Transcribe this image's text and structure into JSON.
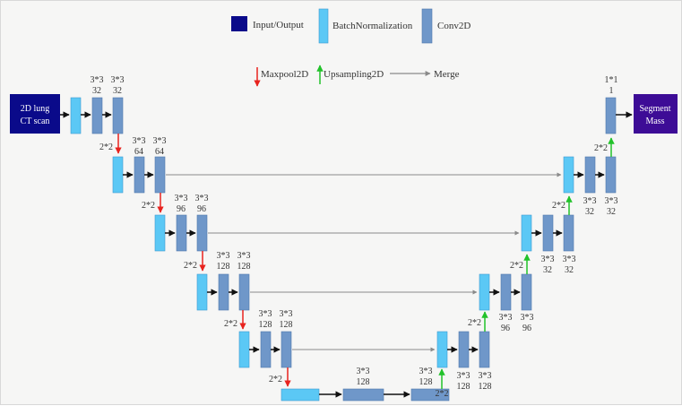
{
  "legend": {
    "input_output": "Input/Output",
    "batch_normalization": "BatchNormalization",
    "conv2d": "Conv2D",
    "maxpool": "Maxpool2D",
    "upsampling": "Upsampling2D",
    "merge": "Merge"
  },
  "io": {
    "input_line1": "2D lung",
    "input_line2": "CT scan",
    "output_line1": "Segment",
    "output_line2": "Mass"
  },
  "encoder": [
    {
      "conv1_k": "3*3",
      "conv1_f": "32",
      "conv2_k": "3*3",
      "conv2_f": "32",
      "pool": "2*2"
    },
    {
      "conv1_k": "3*3",
      "conv1_f": "64",
      "conv2_k": "3*3",
      "conv2_f": "64",
      "pool": "2*2"
    },
    {
      "conv1_k": "3*3",
      "conv1_f": "96",
      "conv2_k": "3*3",
      "conv2_f": "96",
      "pool": "2*2"
    },
    {
      "conv1_k": "3*3",
      "conv1_f": "128",
      "conv2_k": "3*3",
      "conv2_f": "128",
      "pool": "2*2"
    },
    {
      "conv1_k": "3*3",
      "conv1_f": "128",
      "conv2_k": "3*3",
      "conv2_f": "128",
      "pool": "2*2"
    }
  ],
  "bottleneck": {
    "conv_k": "3*3",
    "conv_f": "128"
  },
  "decoder": [
    {
      "up": "2*2",
      "conv1_k": "3*3",
      "conv1_f": "128",
      "conv2_k": "3*3",
      "conv2_f": "128",
      "conv0_k": "3*3",
      "conv0_f": "128"
    },
    {
      "up": "2*2",
      "conv1_k": "3*3",
      "conv1_f": "96",
      "conv2_k": "3*3",
      "conv2_f": "96"
    },
    {
      "up": "2*2",
      "conv1_k": "3*3",
      "conv1_f": "32",
      "conv2_k": "3*3",
      "conv2_f": "32"
    },
    {
      "up": "2*2",
      "conv1_k": "3*3",
      "conv1_f": "32",
      "conv2_k": "3*3",
      "conv2_f": "32"
    },
    {
      "up": "2*2",
      "final_k": "1*1",
      "final_f": "1"
    }
  ],
  "colors": {
    "io": "#0a0a8a",
    "io_out": "#3d0c96",
    "batchnorm": "#5bc8f5",
    "conv": "#6f97c9",
    "maxpool_arrow": "#e8231e",
    "upsample_arrow": "#22c22a",
    "merge_arrow": "#8a8a8a"
  }
}
